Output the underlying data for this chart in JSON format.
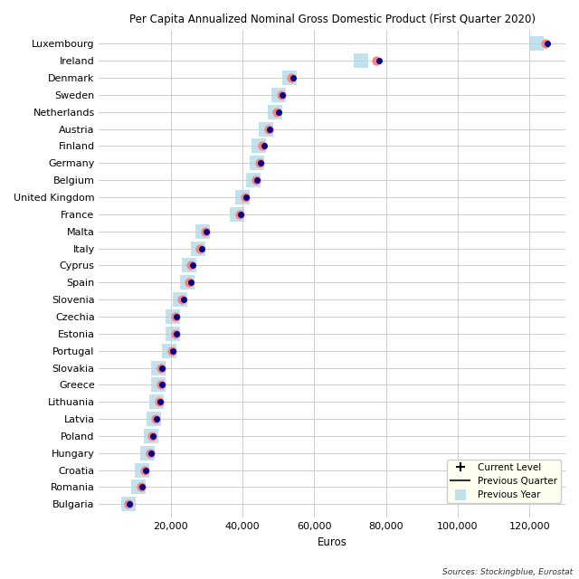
{
  "title": "Per Capita Annualized Nominal Gross Domestic Product (First Quarter 2020)",
  "xlabel": "Euros",
  "source": "Sources: Stockingblue, Eurostat",
  "countries": [
    "Luxembourg",
    "Ireland",
    "Denmark",
    "Sweden",
    "Netherlands",
    "Austria",
    "Finland",
    "Germany",
    "Belgium",
    "United Kingdom",
    "France",
    "Malta",
    "Italy",
    "Cyprus",
    "Spain",
    "Slovenia",
    "Czechia",
    "Estonia",
    "Portugal",
    "Slovakia",
    "Greece",
    "Lithuania",
    "Latvia",
    "Poland",
    "Hungary",
    "Croatia",
    "Romania",
    "Bulgaria"
  ],
  "current": [
    125000,
    78000,
    54000,
    51000,
    50000,
    47500,
    46000,
    45000,
    44000,
    41000,
    39500,
    30000,
    28500,
    26000,
    25500,
    23500,
    21500,
    21500,
    20500,
    17500,
    17500,
    17000,
    16000,
    15000,
    14500,
    13000,
    12000,
    8500
  ],
  "prev_quarter": [
    124500,
    77200,
    53500,
    50800,
    49500,
    47200,
    45500,
    44700,
    43700,
    40700,
    39200,
    29700,
    28200,
    25700,
    25200,
    23200,
    21200,
    21200,
    20200,
    17200,
    17200,
    16700,
    15700,
    14700,
    14200,
    12700,
    11700,
    8200
  ],
  "prev_year": [
    122000,
    73000,
    53000,
    50000,
    49000,
    46500,
    44500,
    44000,
    43000,
    40000,
    38500,
    29000,
    27500,
    25200,
    24500,
    22500,
    20500,
    20500,
    19500,
    16500,
    16500,
    16000,
    15200,
    14500,
    13500,
    12000,
    11000,
    8300
  ],
  "current_color": "#00008b",
  "prev_quarter_color": "#ff8080",
  "line_color": "#cc0000",
  "prev_year_color": "#add8e6",
  "bg_color": "#ffffff",
  "grid_color": "#c8c8c8",
  "label_color": "#000000",
  "xlim": [
    0,
    130000
  ],
  "xticks": [
    20000,
    40000,
    60000,
    80000,
    100000,
    120000
  ],
  "xtick_labels": [
    "20,000",
    "40,000",
    "60,000",
    "80,000",
    "100,000",
    "120,000"
  ]
}
